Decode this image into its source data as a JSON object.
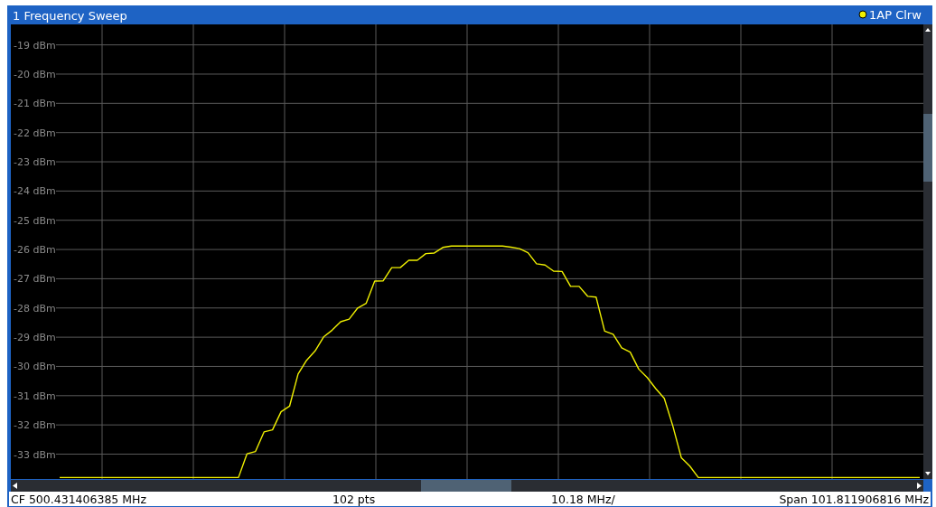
{
  "chart_data": {
    "type": "line",
    "title": "1 Frequency Sweep",
    "categories": [
      null,
      null,
      null,
      null,
      null,
      null,
      null,
      null,
      null,
      null,
      null,
      null,
      null,
      null,
      null,
      null,
      null,
      null,
      null,
      null,
      null,
      null,
      null,
      null,
      null,
      null,
      null,
      null,
      null,
      null,
      null,
      null,
      null,
      null,
      null,
      null,
      null,
      null,
      null,
      null,
      null,
      null,
      null,
      null,
      null,
      null,
      null,
      null,
      null,
      null,
      null,
      null,
      null,
      null,
      null,
      null,
      null,
      null,
      null,
      null,
      null,
      null,
      null,
      null,
      null,
      null,
      null,
      null,
      null,
      null,
      null,
      null,
      null,
      null,
      null,
      null,
      null,
      null,
      null,
      null,
      null,
      null,
      null,
      null,
      null,
      null,
      null,
      null,
      null,
      null,
      null,
      null,
      null,
      null,
      null,
      null,
      null,
      null,
      null,
      null,
      null,
      null
    ],
    "ylim": [
      -33.85,
      -18.3
    ],
    "yticks": [
      {
        "value": -19,
        "label": "-19 dBm"
      },
      {
        "value": -20,
        "label": "-20 dBm"
      },
      {
        "value": -21,
        "label": "-21 dBm"
      },
      {
        "value": -22,
        "label": "-22 dBm"
      },
      {
        "value": -23,
        "label": "-23 dBm"
      },
      {
        "value": -24,
        "label": "-24 dBm"
      },
      {
        "value": -25,
        "label": "-25 dBm"
      },
      {
        "value": -26,
        "label": "-26 dBm"
      },
      {
        "value": -27,
        "label": "-27 dBm"
      },
      {
        "value": -28,
        "label": "-28 dBm"
      },
      {
        "value": -29,
        "label": "-29 dBm"
      },
      {
        "value": -30,
        "label": "-30 dBm"
      },
      {
        "value": -31,
        "label": "-31 dBm"
      },
      {
        "value": -32,
        "label": "-32 dBm"
      },
      {
        "value": -33,
        "label": "-33 dBm"
      }
    ],
    "tick_labels": "y",
    "grid": true,
    "legend": "top right",
    "marker": "none",
    "line_style": "solid",
    "series": [
      {
        "name": "1AP Clrw",
        "color": "#f0f000",
        "values": [
          -33.8,
          -33.8,
          -33.8,
          -33.8,
          -33.8,
          -33.8,
          -33.8,
          -33.8,
          -33.8,
          -33.8,
          -33.8,
          -33.8,
          -33.8,
          -33.8,
          -33.8,
          -33.8,
          -33.8,
          -33.8,
          -33.8,
          -33.8,
          -33.8,
          -33.8,
          -32.99,
          -32.91,
          -32.24,
          -32.17,
          -31.55,
          -31.36,
          -30.26,
          -29.79,
          -29.47,
          -28.99,
          -28.76,
          -28.47,
          -28.38,
          -28.0,
          -27.84,
          -27.08,
          -27.07,
          -26.62,
          -26.62,
          -26.37,
          -26.37,
          -26.14,
          -26.12,
          -25.93,
          -25.88,
          -25.88,
          -25.88,
          -25.88,
          -25.88,
          -25.88,
          -25.88,
          -25.92,
          -25.97,
          -26.11,
          -26.49,
          -26.53,
          -26.74,
          -26.75,
          -27.26,
          -27.26,
          -27.6,
          -27.63,
          -28.79,
          -28.9,
          -29.36,
          -29.51,
          -30.09,
          -30.38,
          -30.76,
          -31.09,
          -32.03,
          -33.12,
          -33.41,
          -33.8,
          -33.8,
          -33.8,
          -33.8,
          -33.8,
          -33.8,
          -33.8,
          -33.8,
          -33.8,
          -33.8,
          -33.8,
          -33.8,
          -33.8,
          -33.8,
          -33.8,
          -33.8,
          -33.8,
          -33.8,
          -33.8,
          -33.8,
          -33.8,
          -33.8,
          -33.8,
          -33.8,
          -33.8,
          -33.8,
          -33.8
        ]
      }
    ],
    "annotations": [
      "CF 500.431406385 MHz",
      "102 pts",
      "10.18 MHz/",
      "Span 101.811906816 MHz"
    ]
  }
}
